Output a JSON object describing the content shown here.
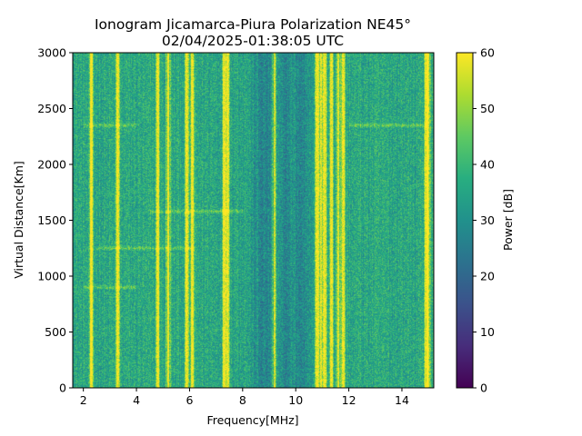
{
  "chart_data": {
    "type": "heatmap",
    "title_line1": "Ionogram Jicamarca-Piura Polarization NE45°",
    "title_line2": "02/04/2025-01:38:05 UTC",
    "xlabel": "Frequency[MHz]",
    "ylabel": "Virtual Distance[Km]",
    "xlim": [
      1.6,
      15.2
    ],
    "ylim": [
      0,
      3000
    ],
    "x_ticks": [
      "2",
      "4",
      "6",
      "8",
      "10",
      "12",
      "14"
    ],
    "x_tick_values": [
      2,
      4,
      6,
      8,
      10,
      12,
      14
    ],
    "y_ticks": [
      "0",
      "500",
      "1000",
      "1500",
      "2000",
      "2500",
      "3000"
    ],
    "y_tick_values": [
      0,
      500,
      1000,
      1500,
      2000,
      2500,
      3000
    ],
    "colorbar": {
      "label": "Power [dB]",
      "range": [
        0,
        60
      ],
      "ticks": [
        "0",
        "10",
        "20",
        "30",
        "40",
        "50",
        "60"
      ],
      "tick_values": [
        0,
        10,
        20,
        30,
        40,
        50,
        60
      ],
      "colormap": "viridis"
    },
    "background_power_db": 36,
    "strong_frequency_bands_mhz": [
      2.3,
      3.3,
      4.8,
      5.2,
      5.9,
      6.1,
      7.3,
      7.45,
      9.2,
      10.8,
      10.95,
      11.1,
      11.35,
      11.6,
      11.8,
      14.9,
      15.0
    ],
    "weak_frequency_bands_mhz": [
      8.5,
      8.9,
      9.6,
      10.2
    ],
    "horizontal_echo_traces": [
      {
        "height_km": 1250,
        "freq_range_mhz": [
          2.5,
          6.2
        ]
      },
      {
        "height_km": 1580,
        "freq_range_mhz": [
          4.5,
          8.0
        ]
      },
      {
        "height_km": 2350,
        "freq_range_mhz": [
          2.0,
          4.0
        ]
      },
      {
        "height_km": 2350,
        "freq_range_mhz": [
          12.0,
          15.0
        ]
      },
      {
        "height_km": 900,
        "freq_range_mhz": [
          2.0,
          4.0
        ]
      }
    ]
  }
}
